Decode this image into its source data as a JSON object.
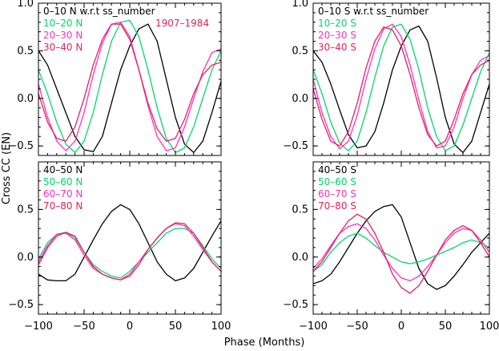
{
  "figure": {
    "ylabel": "Cross CC (EN)",
    "xlabel": "Phase (Months)"
  },
  "chart_data": [
    {
      "type": "line",
      "panel": "top-left",
      "title": "",
      "xlim": [
        -100,
        100
      ],
      "ylim": [
        -0.6,
        1.0
      ],
      "xticks": [
        -100,
        -50,
        0,
        50,
        100
      ],
      "yticks": [
        -0.5,
        0.0,
        0.5,
        1.0
      ],
      "xtick_labels_shown": false,
      "ytick_labels_shown": true,
      "annotation": {
        "text": "1907–1984",
        "color": "#e8205a"
      },
      "series": [
        {
          "name": "0–10 N w.r.t ss_number",
          "color": "#000000",
          "x": [
            -100,
            -90,
            -80,
            -70,
            -60,
            -50,
            -40,
            -30,
            -20,
            -10,
            0,
            10,
            20,
            30,
            40,
            50,
            60,
            70,
            80,
            90,
            100
          ],
          "y": [
            0.5,
            0.35,
            0.1,
            -0.15,
            -0.4,
            -0.54,
            -0.56,
            -0.4,
            -0.05,
            0.3,
            0.55,
            0.73,
            0.78,
            0.6,
            0.2,
            -0.2,
            -0.48,
            -0.57,
            -0.45,
            -0.15,
            0.18
          ]
        },
        {
          "name": "10–20 N",
          "color": "#00d86a",
          "x": [
            -100,
            -90,
            -80,
            -70,
            -60,
            -50,
            -40,
            -30,
            -20,
            -10,
            0,
            10,
            20,
            30,
            40,
            50,
            60,
            70,
            80,
            90,
            100
          ],
          "y": [
            0.3,
            0.05,
            -0.25,
            -0.48,
            -0.57,
            -0.45,
            -0.15,
            0.25,
            0.6,
            0.8,
            0.82,
            0.65,
            0.3,
            -0.1,
            -0.42,
            -0.57,
            -0.52,
            -0.3,
            0.0,
            0.3,
            0.5
          ]
        },
        {
          "name": "20–30 N",
          "color": "#ff30c0",
          "x": [
            -100,
            -90,
            -80,
            -70,
            -60,
            -50,
            -40,
            -30,
            -20,
            -10,
            0,
            10,
            20,
            30,
            40,
            50,
            60,
            70,
            80,
            90,
            100
          ],
          "y": [
            0.15,
            -0.2,
            -0.45,
            -0.55,
            -0.45,
            -0.15,
            0.25,
            0.58,
            0.78,
            0.8,
            0.65,
            0.3,
            -0.08,
            -0.4,
            -0.55,
            -0.52,
            -0.3,
            0.0,
            0.28,
            0.48,
            0.52
          ]
        },
        {
          "name": "30–40 N",
          "color": "#e8205a",
          "x": [
            -100,
            -90,
            -80,
            -70,
            -60,
            -50,
            -40,
            -30,
            -20,
            -10,
            0,
            10,
            20,
            30,
            40,
            50,
            60,
            70,
            80,
            90,
            100
          ],
          "y": [
            0.05,
            -0.25,
            -0.42,
            -0.45,
            -0.3,
            0.0,
            0.35,
            0.62,
            0.78,
            0.78,
            0.62,
            0.3,
            -0.05,
            -0.32,
            -0.45,
            -0.42,
            -0.22,
            0.05,
            0.25,
            0.35,
            0.38
          ]
        }
      ]
    },
    {
      "type": "line",
      "panel": "top-right",
      "title": "",
      "xlim": [
        -100,
        100
      ],
      "ylim": [
        -0.6,
        1.0
      ],
      "xticks": [
        -100,
        -50,
        0,
        50,
        100
      ],
      "yticks": [
        -0.5,
        0.0,
        0.5,
        1.0
      ],
      "xtick_labels_shown": false,
      "ytick_labels_shown": true,
      "series": [
        {
          "name": "0–10 S w.r.t ss_number",
          "color": "#000000",
          "x": [
            -100,
            -90,
            -80,
            -70,
            -60,
            -50,
            -40,
            -30,
            -20,
            -10,
            0,
            10,
            20,
            30,
            40,
            50,
            60,
            70,
            80,
            90,
            100
          ],
          "y": [
            0.5,
            0.38,
            0.15,
            -0.12,
            -0.38,
            -0.52,
            -0.5,
            -0.35,
            -0.05,
            0.3,
            0.55,
            0.72,
            0.76,
            0.6,
            0.22,
            -0.2,
            -0.48,
            -0.57,
            -0.45,
            -0.15,
            0.15
          ]
        },
        {
          "name": "10–20 S",
          "color": "#00d86a",
          "x": [
            -100,
            -90,
            -80,
            -70,
            -60,
            -50,
            -40,
            -30,
            -20,
            -10,
            0,
            10,
            20,
            30,
            40,
            50,
            60,
            70,
            80,
            90,
            100
          ],
          "y": [
            0.3,
            0.05,
            -0.25,
            -0.47,
            -0.55,
            -0.45,
            -0.15,
            0.22,
            0.55,
            0.75,
            0.78,
            0.62,
            0.3,
            -0.1,
            -0.4,
            -0.55,
            -0.5,
            -0.28,
            0.0,
            0.28,
            0.48
          ]
        },
        {
          "name": "20–30 S",
          "color": "#ff30c0",
          "x": [
            -100,
            -90,
            -80,
            -70,
            -60,
            -50,
            -40,
            -30,
            -20,
            -10,
            0,
            10,
            20,
            30,
            40,
            50,
            60,
            70,
            80,
            90,
            100
          ],
          "y": [
            0.2,
            -0.15,
            -0.4,
            -0.53,
            -0.45,
            -0.18,
            0.2,
            0.52,
            0.73,
            0.78,
            0.65,
            0.35,
            -0.02,
            -0.35,
            -0.52,
            -0.5,
            -0.3,
            0.0,
            0.25,
            0.4,
            0.45
          ]
        },
        {
          "name": "30–40 S",
          "color": "#e8205a",
          "x": [
            -100,
            -90,
            -80,
            -70,
            -60,
            -50,
            -40,
            -30,
            -20,
            -10,
            0,
            10,
            20,
            30,
            40,
            50,
            60,
            70,
            80,
            90,
            100
          ],
          "y": [
            0.1,
            -0.22,
            -0.45,
            -0.5,
            -0.35,
            -0.05,
            0.32,
            0.6,
            0.75,
            0.72,
            0.55,
            0.25,
            -0.1,
            -0.38,
            -0.5,
            -0.45,
            -0.22,
            0.05,
            0.25,
            0.35,
            0.4
          ]
        }
      ]
    },
    {
      "type": "line",
      "panel": "bottom-left",
      "title": "",
      "xlim": [
        -100,
        100
      ],
      "ylim": [
        -0.6,
        1.0
      ],
      "xticks": [
        -100,
        -50,
        0,
        50,
        100
      ],
      "yticks": [
        -0.5,
        0.0,
        0.5
      ],
      "xtick_labels_shown": true,
      "ytick_labels_shown": true,
      "series": [
        {
          "name": "40–50 N",
          "color": "#000000",
          "x": [
            -100,
            -90,
            -80,
            -70,
            -60,
            -50,
            -40,
            -30,
            -20,
            -10,
            0,
            10,
            20,
            30,
            40,
            50,
            60,
            70,
            80,
            90,
            100
          ],
          "y": [
            -0.18,
            -0.24,
            -0.25,
            -0.25,
            -0.18,
            0.0,
            0.18,
            0.35,
            0.48,
            0.55,
            0.5,
            0.35,
            0.15,
            -0.05,
            -0.18,
            -0.25,
            -0.22,
            -0.12,
            0.05,
            0.22,
            0.38
          ]
        },
        {
          "name": "50–60 N",
          "color": "#00d86a",
          "x": [
            -100,
            -90,
            -80,
            -70,
            -60,
            -50,
            -40,
            -30,
            -20,
            -10,
            0,
            10,
            20,
            30,
            40,
            50,
            60,
            70,
            80,
            90,
            100
          ],
          "y": [
            -0.02,
            0.15,
            0.24,
            0.26,
            0.2,
            0.05,
            -0.08,
            -0.15,
            -0.2,
            -0.22,
            -0.15,
            -0.05,
            0.05,
            0.15,
            0.25,
            0.3,
            0.3,
            0.25,
            0.12,
            -0.02,
            -0.12
          ]
        },
        {
          "name": "60–70 N",
          "color": "#ff30c0",
          "x": [
            -100,
            -90,
            -80,
            -70,
            -60,
            -50,
            -40,
            -30,
            -20,
            -10,
            0,
            10,
            20,
            30,
            40,
            50,
            60,
            70,
            80,
            90,
            100
          ],
          "y": [
            -0.05,
            0.12,
            0.24,
            0.25,
            0.18,
            0.02,
            -0.12,
            -0.18,
            -0.22,
            -0.24,
            -0.18,
            -0.05,
            0.08,
            0.2,
            0.3,
            0.35,
            0.33,
            0.22,
            0.08,
            -0.05,
            -0.15
          ]
        },
        {
          "name": "70–80 N",
          "color": "#e8205a",
          "x": [
            -100,
            -90,
            -80,
            -70,
            -60,
            -50,
            -40,
            -30,
            -20,
            -10,
            0,
            10,
            20,
            30,
            40,
            50,
            60,
            70,
            80,
            90,
            100
          ],
          "y": [
            -0.08,
            0.1,
            0.22,
            0.26,
            0.22,
            0.05,
            -0.1,
            -0.18,
            -0.22,
            -0.24,
            -0.2,
            -0.08,
            0.08,
            0.2,
            0.3,
            0.36,
            0.35,
            0.25,
            0.1,
            -0.05,
            -0.15
          ]
        }
      ]
    },
    {
      "type": "line",
      "panel": "bottom-right",
      "title": "",
      "xlim": [
        -100,
        100
      ],
      "ylim": [
        -0.6,
        1.0
      ],
      "xticks": [
        -100,
        -50,
        0,
        50,
        100
      ],
      "yticks": [
        -0.5,
        0.0,
        0.5
      ],
      "xtick_labels_shown": true,
      "ytick_labels_shown": true,
      "series": [
        {
          "name": "40–50 S",
          "color": "#000000",
          "x": [
            -100,
            -90,
            -80,
            -70,
            -60,
            -50,
            -40,
            -30,
            -20,
            -10,
            0,
            10,
            20,
            30,
            40,
            50,
            60,
            70,
            80,
            90,
            100
          ],
          "y": [
            -0.28,
            -0.25,
            -0.18,
            -0.05,
            0.1,
            0.25,
            0.38,
            0.48,
            0.53,
            0.55,
            0.42,
            0.15,
            -0.12,
            -0.28,
            -0.34,
            -0.3,
            -0.2,
            -0.08,
            0.05,
            0.15,
            0.25
          ]
        },
        {
          "name": "50–60 S",
          "color": "#00d86a",
          "x": [
            -100,
            -90,
            -80,
            -70,
            -60,
            -50,
            -40,
            -30,
            -20,
            -10,
            0,
            10,
            20,
            30,
            40,
            50,
            60,
            70,
            80,
            90,
            100
          ],
          "y": [
            -0.15,
            -0.08,
            0.05,
            0.15,
            0.22,
            0.25,
            0.2,
            0.12,
            0.05,
            0.0,
            -0.05,
            -0.07,
            -0.05,
            -0.02,
            0.02,
            0.06,
            0.1,
            0.15,
            0.18,
            0.15,
            0.1
          ]
        },
        {
          "name": "60–70 S",
          "color": "#ff30c0",
          "x": [
            -100,
            -90,
            -80,
            -70,
            -60,
            -50,
            -40,
            -30,
            -20,
            -10,
            0,
            10,
            20,
            30,
            40,
            50,
            60,
            70,
            80,
            90,
            100
          ],
          "y": [
            -0.12,
            -0.02,
            0.12,
            0.25,
            0.32,
            0.35,
            0.3,
            0.18,
            0.02,
            -0.12,
            -0.22,
            -0.25,
            -0.2,
            -0.1,
            0.02,
            0.15,
            0.25,
            0.3,
            0.28,
            0.18,
            0.05
          ]
        },
        {
          "name": "70–80 S",
          "color": "#e8205a",
          "x": [
            -100,
            -90,
            -80,
            -70,
            -60,
            -50,
            -40,
            -30,
            -20,
            -10,
            0,
            10,
            20,
            30,
            40,
            50,
            60,
            70,
            80,
            90,
            100
          ],
          "y": [
            -0.15,
            -0.05,
            0.1,
            0.25,
            0.38,
            0.45,
            0.4,
            0.25,
            0.05,
            -0.18,
            -0.32,
            -0.38,
            -0.3,
            -0.15,
            0.02,
            0.18,
            0.28,
            0.33,
            0.28,
            0.15,
            0.0
          ]
        }
      ]
    }
  ]
}
